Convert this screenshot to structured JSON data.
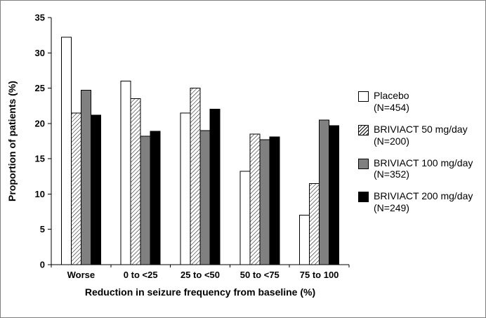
{
  "chart_data": {
    "type": "bar",
    "title": "",
    "xlabel": "Reduction in seizure frequency from baseline (%)",
    "ylabel": "Proportion of patients (%)",
    "ylim": [
      0,
      35
    ],
    "ytick_step": 5,
    "grid": false,
    "legend_position": "right",
    "categories": [
      "Worse",
      "0 to <25",
      "25 to <50",
      "50 to <75",
      "75 to 100"
    ],
    "series": [
      {
        "name": "Placebo",
        "n_label": "(N=454)",
        "fill": "#ffffff",
        "pattern": "none",
        "values": [
          32.2,
          26.0,
          21.5,
          13.2,
          7.0
        ]
      },
      {
        "name": "BRIVIACT 50 mg/day",
        "n_label": "(N=200)",
        "fill": "#ffffff",
        "pattern": "diagonal-hatch",
        "values": [
          21.5,
          23.5,
          25.0,
          18.5,
          11.5
        ]
      },
      {
        "name": "BRIVIACT 100 mg/day",
        "n_label": "(N=352)",
        "fill": "#808080",
        "pattern": "none",
        "values": [
          24.7,
          18.2,
          19.0,
          17.7,
          20.5
        ]
      },
      {
        "name": "BRIVIACT 200 mg/day",
        "n_label": "(N=249)",
        "fill": "#000000",
        "pattern": "none",
        "values": [
          21.2,
          18.9,
          22.0,
          18.1,
          19.7
        ]
      }
    ]
  },
  "colors": {
    "frame_border": "#808080",
    "axis": "#000000",
    "bar_outline": "#000000"
  }
}
